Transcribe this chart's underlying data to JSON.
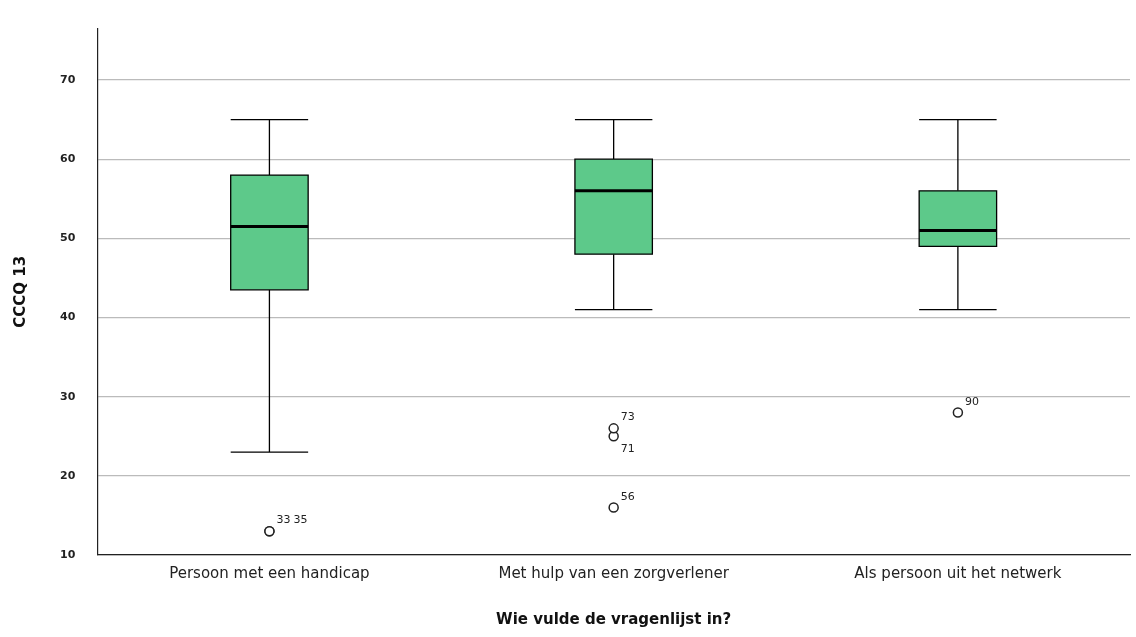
{
  "chart_data": {
    "type": "box",
    "xlabel": "Wie vulde de vragenlijst in?",
    "ylabel": "CCCQ 13",
    "categories": [
      "Persoon met een handicap",
      "Met hulp van een zorgverlener",
      "Als persoon uit het netwerk"
    ],
    "color": "#5dc98a",
    "boxes": [
      {
        "low": 23,
        "q1": 43.5,
        "median": 51.5,
        "q3": 58,
        "high": 65,
        "outliers": [
          13,
          13
        ]
      },
      {
        "low": 41,
        "q1": 48,
        "median": 56,
        "q3": 60,
        "high": 65,
        "outliers": [
          26,
          25,
          16
        ]
      },
      {
        "low": 41,
        "q1": 49,
        "median": 51,
        "q3": 56,
        "high": 65,
        "outliers": [
          28
        ]
      }
    ],
    "ylim": [
      10,
      76.5
    ],
    "yticks": [
      10,
      20,
      30,
      40,
      50,
      60,
      70
    ],
    "grid": "y",
    "annotations": [
      "33",
      "35",
      "73",
      "71",
      "56",
      "90"
    ]
  }
}
